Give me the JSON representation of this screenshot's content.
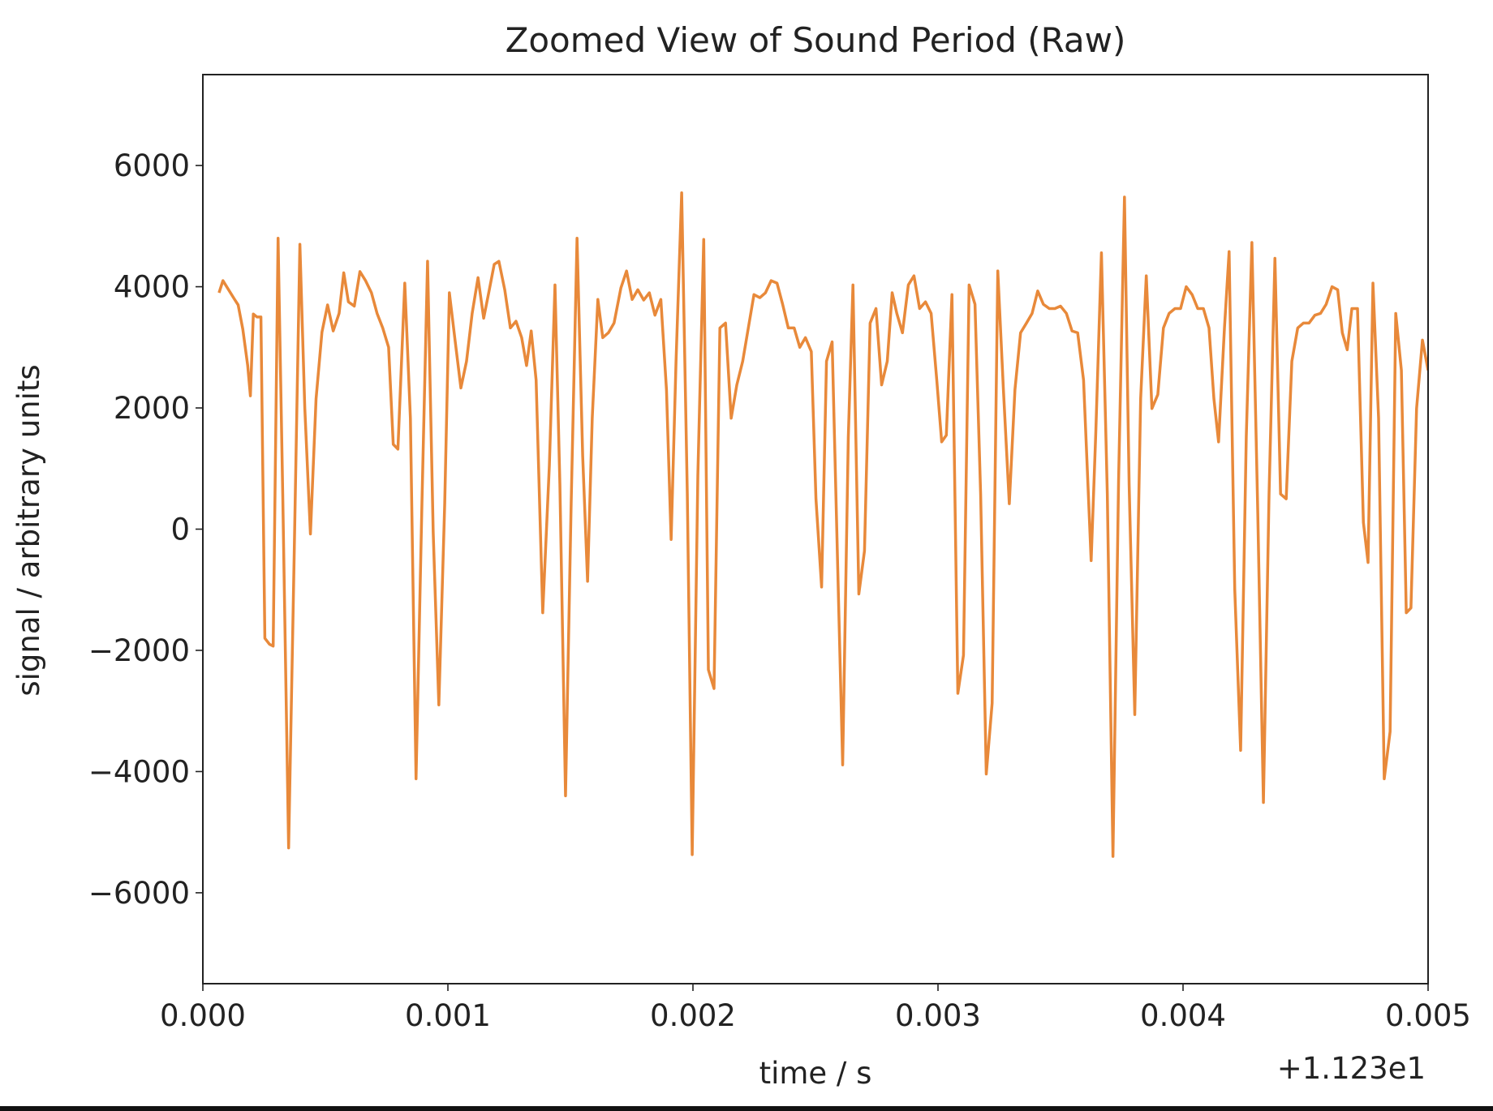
{
  "chart_data": {
    "type": "line",
    "title": "Zoomed View of Sound Period (Raw)",
    "x_label": "time / s",
    "y_label": "signal / arbitrary units",
    "x_offset_text": "+1.123e1",
    "xlim": [
      0,
      0.005
    ],
    "ylim": [
      -7500,
      7500
    ],
    "xticks": [
      {
        "value": 0,
        "label": "0.000"
      },
      {
        "value": 0.001,
        "label": "0.001"
      },
      {
        "value": 0.002,
        "label": "0.002"
      },
      {
        "value": 0.003,
        "label": "0.003"
      },
      {
        "value": 0.004,
        "label": "0.004"
      },
      {
        "value": 0.005,
        "label": "0.005"
      }
    ],
    "yticks": [
      {
        "value": -6000,
        "label": "−6000"
      },
      {
        "value": -4000,
        "label": "−4000"
      },
      {
        "value": -2000,
        "label": "−2000"
      },
      0,
      2000,
      4000,
      6000
    ],
    "grid": false,
    "x": [
      6.6e-05,
      8.2e-05,
      0.000105,
      0.000128,
      0.000144,
      0.000163,
      0.000183,
      0.000194,
      0.000206,
      0.000221,
      0.000237,
      0.000253,
      0.000272,
      0.000287,
      0.000307,
      0.000326,
      0.00035,
      0.000373,
      0.000396,
      0.000416,
      0.000439,
      0.000462,
      0.000486,
      0.000509,
      0.000532,
      0.000556,
      0.000575,
      0.000594,
      0.000618,
      0.000641,
      0.000664,
      0.000688,
      0.000711,
      0.000734,
      0.000758,
      0.000777,
      0.000796,
      0.000824,
      0.000847,
      0.00087,
      0.000894,
      0.000917,
      0.00094,
      0.000963,
      0.000987,
      0.001006,
      0.00103,
      0.001053,
      0.001076,
      0.001099,
      0.001123,
      0.001146,
      0.001169,
      0.001189,
      0.001208,
      0.001232,
      0.001255,
      0.001278,
      0.001301,
      0.001321,
      0.00134,
      0.00136,
      0.001387,
      0.001414,
      0.001437,
      0.001457,
      0.00148,
      0.001503,
      0.001527,
      0.00155,
      0.00157,
      0.001589,
      0.001612,
      0.001632,
      0.001655,
      0.001678,
      0.001706,
      0.001729,
      0.001752,
      0.001775,
      0.001799,
      0.001822,
      0.001845,
      0.001869,
      0.001892,
      0.001911,
      0.001931,
      0.001954,
      0.001977,
      0.001997,
      0.00202,
      0.002044,
      0.002063,
      0.002086,
      0.00211,
      0.002133,
      0.002156,
      0.002179,
      0.002203,
      0.002226,
      0.002249,
      0.002273,
      0.002296,
      0.002319,
      0.002343,
      0.002366,
      0.002389,
      0.002413,
      0.002436,
      0.002459,
      0.002483,
      0.002502,
      0.002525,
      0.002545,
      0.002568,
      0.002591,
      0.002611,
      0.002634,
      0.002653,
      0.002677,
      0.0027,
      0.002723,
      0.002747,
      0.00277,
      0.002793,
      0.002813,
      0.002832,
      0.002855,
      0.002879,
      0.002902,
      0.002925,
      0.002949,
      0.002972,
      0.002995,
      0.003015,
      0.003034,
      0.003057,
      0.003081,
      0.003104,
      0.003127,
      0.003151,
      0.003174,
      0.003197,
      0.003221,
      0.003244,
      0.003267,
      0.003291,
      0.003314,
      0.003337,
      0.003361,
      0.003384,
      0.003407,
      0.00343,
      0.003454,
      0.003477,
      0.0035,
      0.003524,
      0.003547,
      0.00357,
      0.003594,
      0.003625,
      0.003644,
      0.003667,
      0.003691,
      0.003714,
      0.003737,
      0.003761,
      0.00378,
      0.003803,
      0.003827,
      0.00385,
      0.003873,
      0.003897,
      0.00392,
      0.003943,
      0.003967,
      0.00399,
      0.004013,
      0.004037,
      0.00406,
      0.004083,
      0.004106,
      0.004126,
      0.004145,
      0.004169,
      0.004188,
      0.004211,
      0.004235,
      0.004258,
      0.004281,
      0.004305,
      0.004328,
      0.004351,
      0.004375,
      0.004398,
      0.004421,
      0.004444,
      0.004468,
      0.004491,
      0.004514,
      0.004538,
      0.004561,
      0.004584,
      0.004608,
      0.004631,
      0.00465,
      0.00467,
      0.004689,
      0.004712,
      0.004736,
      0.004755,
      0.004775,
      0.004798,
      0.004821,
      0.004845,
      0.004868,
      0.004891,
      0.004911,
      0.00493,
      0.004953,
      0.004977,
      0.005
    ],
    "series": [
      {
        "color": "#e8893a",
        "values": [
          3900,
          4100,
          3950,
          3800,
          3700,
          3300,
          2700,
          2200,
          3550,
          3500,
          3500,
          -1800,
          -1900,
          -1930,
          4800,
          580,
          -5260,
          -360,
          4700,
          2000,
          -80,
          2150,
          3250,
          3700,
          3270,
          3560,
          4230,
          3750,
          3680,
          4250,
          4100,
          3900,
          3560,
          3320,
          3000,
          1400,
          1320,
          4060,
          1830,
          -4120,
          420,
          4420,
          -50,
          -2900,
          420,
          3900,
          3090,
          2330,
          2770,
          3560,
          4150,
          3480,
          3950,
          4370,
          4420,
          3950,
          3320,
          3430,
          3160,
          2700,
          3270,
          2460,
          -1380,
          1050,
          4030,
          740,
          -4400,
          420,
          4800,
          1210,
          -860,
          1830,
          3790,
          3160,
          3240,
          3400,
          3980,
          4260,
          3790,
          3950,
          3780,
          3900,
          3530,
          3790,
          2300,
          -170,
          2770,
          5550,
          580,
          -5370,
          890,
          4780,
          -2320,
          -2630,
          3320,
          3400,
          1830,
          2380,
          2770,
          3320,
          3870,
          3820,
          3900,
          4100,
          4060,
          3710,
          3320,
          3320,
          3000,
          3160,
          2930,
          500,
          -955,
          2770,
          3090,
          -670,
          -3890,
          1520,
          4030,
          -1070,
          -360,
          3400,
          3640,
          2380,
          2770,
          3900,
          3560,
          3240,
          4030,
          4180,
          3640,
          3750,
          3560,
          2460,
          1440,
          1550,
          3870,
          -2710,
          -2080,
          4030,
          3710,
          580,
          -4040,
          -2870,
          4260,
          2300,
          420,
          2300,
          3240,
          3400,
          3560,
          3930,
          3710,
          3640,
          3640,
          3680,
          3560,
          3270,
          3240,
          2460,
          -520,
          1600,
          4560,
          580,
          -5400,
          810,
          5480,
          740,
          -3060,
          2150,
          4180,
          1990,
          2220,
          3320,
          3560,
          3640,
          3640,
          4000,
          3870,
          3640,
          3640,
          3320,
          2150,
          1440,
          3320,
          4580,
          -990,
          -3650,
          1520,
          4730,
          270,
          -4510,
          580,
          4470,
          580,
          500,
          2770,
          3320,
          3400,
          3400,
          3530,
          3560,
          3710,
          4000,
          3950,
          3240,
          2960,
          3640,
          3640,
          110,
          -550,
          4060,
          1830,
          -4120,
          -3340,
          3560,
          2620,
          -1380,
          -1300,
          1990,
          3120,
          2620
        ]
      }
    ]
  }
}
